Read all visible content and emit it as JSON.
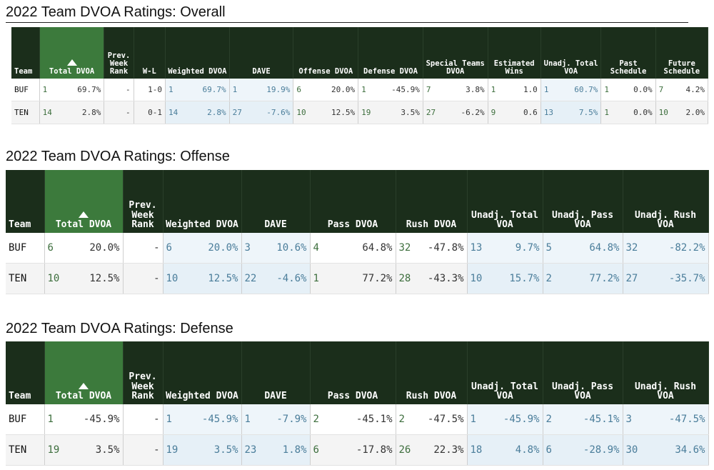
{
  "overall": {
    "title": "2022 Team DVOA Ratings: Overall",
    "headers": [
      "Team",
      "Total DVOA",
      "Prev. Week Rank",
      "W-L",
      "Weighted DVOA",
      "DAVE",
      "Offense DVOA",
      "Defense DVOA",
      "Special Teams DVOA",
      "Estimated Wins",
      "Unadj. Total VOA",
      "Past Schedule",
      "Future Schedule"
    ],
    "rows": [
      {
        "team": "BUF",
        "total_rk": "1",
        "total": "69.7%",
        "prev": "-",
        "wl": "1-0",
        "wdvoa_rk": "1",
        "wdvoa": "69.7%",
        "dave_rk": "1",
        "dave": "19.9%",
        "off_rk": "6",
        "off": "20.0%",
        "def_rk": "1",
        "def": "-45.9%",
        "st_rk": "7",
        "st": "3.8%",
        "est_rk": "1",
        "est": "1.0",
        "voa_rk": "1",
        "voa": "60.7%",
        "past_rk": "1",
        "past": "0.0%",
        "fut_rk": "7",
        "fut": "4.2%"
      },
      {
        "team": "TEN",
        "total_rk": "14",
        "total": "2.8%",
        "prev": "-",
        "wl": "0-1",
        "wdvoa_rk": "14",
        "wdvoa": "2.8%",
        "dave_rk": "27",
        "dave": "-7.6%",
        "off_rk": "10",
        "off": "12.5%",
        "def_rk": "19",
        "def": "3.5%",
        "st_rk": "27",
        "st": "-6.2%",
        "est_rk": "9",
        "est": "0.6",
        "voa_rk": "13",
        "voa": "7.5%",
        "past_rk": "1",
        "past": "0.0%",
        "fut_rk": "10",
        "fut": "2.0%"
      }
    ]
  },
  "offense": {
    "title": "2022 Team DVOA Ratings: Offense",
    "headers": [
      "Team",
      "Total DVOA",
      "Prev. Week Rank",
      "Weighted DVOA",
      "DAVE",
      "Pass DVOA",
      "Rush DVOA",
      "Unadj. Total VOA",
      "Unadj. Pass VOA",
      "Unadj. Rush VOA"
    ],
    "rows": [
      {
        "team": "BUF",
        "total_rk": "6",
        "total": "20.0%",
        "prev": "-",
        "w_rk": "6",
        "w": "20.0%",
        "dave_rk": "3",
        "dave": "10.6%",
        "pass_rk": "4",
        "pass": "64.8%",
        "rush_rk": "32",
        "rush": "-47.8%",
        "voa_rk": "13",
        "voa": "9.7%",
        "pvoa_rk": "5",
        "pvoa": "64.8%",
        "rvoa_rk": "32",
        "rvoa": "-82.2%"
      },
      {
        "team": "TEN",
        "total_rk": "10",
        "total": "12.5%",
        "prev": "-",
        "w_rk": "10",
        "w": "12.5%",
        "dave_rk": "22",
        "dave": "-4.6%",
        "pass_rk": "1",
        "pass": "77.2%",
        "rush_rk": "28",
        "rush": "-43.3%",
        "voa_rk": "10",
        "voa": "15.7%",
        "pvoa_rk": "2",
        "pvoa": "77.2%",
        "rvoa_rk": "27",
        "rvoa": "-35.7%"
      }
    ]
  },
  "defense": {
    "title": "2022 Team DVOA Ratings: Defense",
    "headers": [
      "Team",
      "Total DVOA",
      "Prev. Week Rank",
      "Weighted DVOA",
      "DAVE",
      "Pass DVOA",
      "Rush DVOA",
      "Unadj. Total VOA",
      "Unadj. Pass VOA",
      "Unadj. Rush VOA"
    ],
    "rows": [
      {
        "team": "BUF",
        "total_rk": "1",
        "total": "-45.9%",
        "prev": "-",
        "w_rk": "1",
        "w": "-45.9%",
        "dave_rk": "1",
        "dave": "-7.9%",
        "pass_rk": "2",
        "pass": "-45.1%",
        "rush_rk": "2",
        "rush": "-47.5%",
        "voa_rk": "1",
        "voa": "-45.9%",
        "pvoa_rk": "2",
        "pvoa": "-45.1%",
        "rvoa_rk": "3",
        "rvoa": "-47.5%"
      },
      {
        "team": "TEN",
        "total_rk": "19",
        "total": "3.5%",
        "prev": "-",
        "w_rk": "19",
        "w": "3.5%",
        "dave_rk": "23",
        "dave": "1.8%",
        "pass_rk": "6",
        "pass": "-17.8%",
        "rush_rk": "26",
        "rush": "22.3%",
        "voa_rk": "18",
        "voa": "4.8%",
        "pvoa_rk": "6",
        "pvoa": "-28.9%",
        "rvoa_rk": "30",
        "rvoa": "34.6%"
      }
    ]
  },
  "colors": {
    "header_bg": "#1b2e1b",
    "sorted_header_bg": "#3c7a3c",
    "blue_cell_bg": "#eef5fa",
    "rank_green": "#3d6e3d",
    "rank_blue": "#4a7d9a"
  },
  "icons": {
    "sort_indicator": "triangle-up-icon"
  }
}
